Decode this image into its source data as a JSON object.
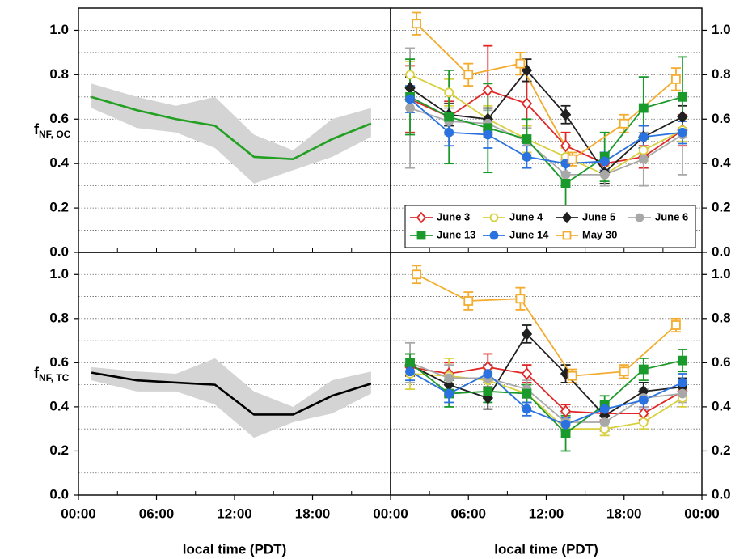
{
  "chart_data": [
    {
      "type": "line",
      "ylabel": "f",
      "ylabel_sub": "NF, OC",
      "xlim": [
        0,
        24
      ],
      "ylim": [
        0,
        1.1
      ],
      "yticks": [
        {
          "value": 0,
          "label": "0.0"
        },
        0.2,
        0.4,
        0.6,
        0.8,
        {
          "value": 1,
          "label": "1.0"
        }
      ],
      "y_minor_ticks": [
        0.1,
        0.3,
        0.5,
        0.7,
        0.9
      ],
      "x_minor_ticks": [
        0,
        3,
        6,
        9,
        12,
        15,
        18,
        21
      ],
      "grid": true,
      "series": [
        {
          "color": "#22a022",
          "band_color": "#d4d4d4",
          "x": [
            1,
            4.5,
            7.5,
            10.5,
            13.5,
            16.5,
            19.5,
            22.5
          ],
          "values": [
            0.7,
            0.64,
            0.6,
            0.57,
            0.43,
            0.42,
            0.51,
            0.58
          ],
          "band_high": [
            0.76,
            0.7,
            0.66,
            0.7,
            0.53,
            0.46,
            0.6,
            0.65
          ],
          "band_low": [
            0.65,
            0.56,
            0.54,
            0.47,
            0.31,
            0.37,
            0.43,
            0.52
          ]
        }
      ]
    },
    {
      "type": "line",
      "side": "right",
      "xlim": [
        0,
        24
      ],
      "ylim": [
        0,
        1.1
      ],
      "yticks": [
        {
          "value": 0,
          "label": "0.0"
        },
        0.2,
        0.4,
        0.6,
        0.8,
        {
          "value": 1,
          "label": "1.0"
        }
      ],
      "y_minor_ticks": [
        0.1,
        0.3,
        0.5,
        0.7,
        0.9
      ],
      "x_minor_ticks": [
        0,
        3,
        6,
        9,
        12,
        15,
        18,
        21
      ],
      "grid": true,
      "legend": "lower",
      "series": [
        {
          "name": "June 3",
          "color": "#e02828",
          "marker": "diamond",
          "filled": false,
          "x": [
            1.5,
            4.5,
            7.5,
            10.5,
            13.5,
            16.5,
            19.5,
            22.5
          ],
          "values": [
            0.69,
            0.61,
            0.73,
            0.67,
            0.48,
            0.4,
            0.43,
            0.55
          ],
          "errors": [
            0.15,
            0.07,
            0.2,
            0.1,
            0.06,
            0.05,
            0.05,
            0.07
          ]
        },
        {
          "name": "June 4",
          "color": "#d8d040",
          "marker": "circle",
          "filled": false,
          "x": [
            1.5,
            4.5,
            7.5,
            10.5,
            13.5,
            16.5,
            19.5,
            22.5
          ],
          "values": [
            0.8,
            0.72,
            0.6,
            0.51,
            0.43,
            0.35,
            0.46,
            0.55
          ],
          "errors": [
            0.06,
            0.06,
            0.06,
            0.06,
            0.04,
            0.04,
            0.05,
            0.05
          ]
        },
        {
          "name": "June 5",
          "color": "#202020",
          "marker": "diamond",
          "filled": true,
          "x": [
            1.5,
            4.5,
            7.5,
            10.5,
            13.5,
            16.5,
            19.5,
            22.5
          ],
          "values": [
            0.74,
            0.62,
            0.6,
            0.82,
            0.62,
            0.36,
            0.52,
            0.61
          ],
          "errors": [
            0.05,
            0.05,
            0.05,
            0.05,
            0.04,
            0.05,
            0.05,
            0.05
          ]
        },
        {
          "name": "June 6",
          "color": "#a8a8a8",
          "marker": "circle",
          "filled": true,
          "x": [
            1.5,
            4.5,
            7.5,
            10.5,
            13.5,
            16.5,
            19.5,
            22.5
          ],
          "values": [
            0.65,
            0.59,
            0.58,
            0.5,
            0.35,
            0.35,
            0.42,
            0.53
          ],
          "errors": [
            0.27,
            0.06,
            0.06,
            0.06,
            0.05,
            0.05,
            0.12,
            0.18
          ]
        },
        {
          "name": "June 13",
          "color": "#1a9a2a",
          "marker": "square",
          "filled": true,
          "x": [
            1.5,
            4.5,
            7.5,
            10.5,
            13.5,
            16.5,
            19.5,
            22.5
          ],
          "values": [
            0.7,
            0.61,
            0.56,
            0.51,
            0.31,
            0.43,
            0.65,
            0.7
          ],
          "errors": [
            0.17,
            0.21,
            0.2,
            0.09,
            0.1,
            0.11,
            0.14,
            0.18
          ]
        },
        {
          "name": "June 14",
          "color": "#2a72e0",
          "marker": "circle",
          "filled": true,
          "x": [
            1.5,
            4.5,
            7.5,
            10.5,
            13.5,
            16.5,
            19.5,
            22.5
          ],
          "values": [
            0.69,
            0.54,
            0.53,
            0.43,
            0.4,
            0.41,
            0.52,
            0.54
          ],
          "errors": [
            0.06,
            0.06,
            0.06,
            0.05,
            0.04,
            0.04,
            0.05,
            0.05
          ]
        },
        {
          "name": "May 30",
          "color": "#f3ac2e",
          "marker": "square",
          "filled": false,
          "x": [
            2,
            6,
            10,
            14,
            18,
            22
          ],
          "values": [
            1.03,
            0.8,
            0.85,
            0.42,
            0.58,
            0.78
          ],
          "errors": [
            0.05,
            0.05,
            0.05,
            0.03,
            0.04,
            0.05
          ]
        }
      ]
    },
    {
      "type": "line",
      "ylabel": "f",
      "ylabel_sub": "NF, TC",
      "xlabel": "local time (PDT)",
      "xlim": [
        0,
        24
      ],
      "ylim": [
        0,
        1.1
      ],
      "yticks": [
        {
          "value": 0,
          "label": "0.0"
        },
        0.2,
        0.4,
        0.6,
        0.8,
        {
          "value": 1,
          "label": "1.0"
        }
      ],
      "y_minor_ticks": [
        0.1,
        0.3,
        0.5,
        0.7,
        0.9
      ],
      "xticks": [
        {
          "value": 0,
          "label": "00:00"
        },
        {
          "value": 6,
          "label": "06:00"
        },
        {
          "value": 12,
          "label": "12:00"
        },
        {
          "value": 18,
          "label": "18:00"
        }
      ],
      "x_minor_ticks": [
        3,
        9,
        15,
        21
      ],
      "grid": true,
      "series": [
        {
          "color": "#000000",
          "band_color": "#d4d4d4",
          "x": [
            1,
            4.5,
            7.5,
            10.5,
            13.5,
            16.5,
            19.5,
            22.5
          ],
          "values": [
            0.555,
            0.52,
            0.51,
            0.5,
            0.365,
            0.365,
            0.45,
            0.505
          ],
          "band_high": [
            0.58,
            0.56,
            0.55,
            0.62,
            0.47,
            0.4,
            0.52,
            0.56
          ],
          "band_low": [
            0.52,
            0.47,
            0.47,
            0.41,
            0.26,
            0.33,
            0.37,
            0.46
          ]
        }
      ]
    },
    {
      "type": "line",
      "side": "right",
      "xlabel": "local time (PDT)",
      "xlim": [
        0,
        24
      ],
      "ylim": [
        0,
        1.1
      ],
      "yticks": [
        {
          "value": 0,
          "label": "0.0"
        },
        0.2,
        0.4,
        0.6,
        0.8,
        {
          "value": 1,
          "label": "1.0"
        }
      ],
      "y_minor_ticks": [
        0.1,
        0.3,
        0.5,
        0.7,
        0.9
      ],
      "xticks": [
        {
          "value": 0,
          "label": "00:00"
        },
        {
          "value": 6,
          "label": "06:00"
        },
        {
          "value": 12,
          "label": "12:00"
        },
        {
          "value": 18,
          "label": "18:00"
        },
        {
          "value": 24,
          "label": "00:00"
        }
      ],
      "x_minor_ticks": [
        3,
        9,
        15,
        21
      ],
      "grid": true,
      "series": [
        {
          "color": "#e02828",
          "marker": "diamond",
          "filled": false,
          "x": [
            1.5,
            4.5,
            7.5,
            10.5,
            13.5,
            16.5,
            19.5,
            22.5
          ],
          "values": [
            0.58,
            0.55,
            0.58,
            0.55,
            0.38,
            0.37,
            0.37,
            0.47
          ],
          "errors": [
            0.04,
            0.05,
            0.06,
            0.04,
            0.03,
            0.03,
            0.03,
            0.04
          ]
        },
        {
          "color": "#d8d040",
          "marker": "circle",
          "filled": false,
          "x": [
            1.5,
            4.5,
            7.5,
            10.5,
            13.5,
            16.5,
            19.5,
            22.5
          ],
          "values": [
            0.55,
            0.54,
            0.52,
            0.46,
            0.3,
            0.3,
            0.33,
            0.44
          ],
          "errors": [
            0.07,
            0.08,
            0.05,
            0.04,
            0.04,
            0.03,
            0.03,
            0.04
          ]
        },
        {
          "color": "#202020",
          "marker": "diamond",
          "filled": true,
          "x": [
            1.5,
            4.5,
            7.5,
            10.5,
            13.5,
            16.5,
            19.5,
            22.5
          ],
          "values": [
            0.59,
            0.5,
            0.44,
            0.73,
            0.55,
            0.36,
            0.47,
            0.49
          ],
          "errors": [
            0.05,
            0.05,
            0.05,
            0.04,
            0.04,
            0.03,
            0.04,
            0.04
          ]
        },
        {
          "color": "#a8a8a8",
          "marker": "circle",
          "filled": true,
          "x": [
            1.5,
            4.5,
            7.5,
            10.5,
            13.5,
            16.5,
            19.5,
            22.5
          ],
          "values": [
            0.6,
            0.53,
            0.53,
            0.48,
            0.33,
            0.33,
            0.44,
            0.46
          ],
          "errors": [
            0.09,
            0.06,
            0.05,
            0.04,
            0.04,
            0.04,
            0.04,
            0.04
          ]
        },
        {
          "color": "#1a9a2a",
          "marker": "square",
          "filled": true,
          "x": [
            1.5,
            4.5,
            7.5,
            10.5,
            13.5,
            16.5,
            19.5,
            22.5
          ],
          "values": [
            0.6,
            0.46,
            0.47,
            0.46,
            0.28,
            0.41,
            0.57,
            0.61
          ],
          "errors": [
            0.04,
            0.06,
            0.05,
            0.04,
            0.08,
            0.04,
            0.05,
            0.05
          ]
        },
        {
          "color": "#2a72e0",
          "marker": "circle",
          "filled": true,
          "x": [
            1.5,
            4.5,
            7.5,
            10.5,
            13.5,
            16.5,
            19.5,
            22.5
          ],
          "values": [
            0.56,
            0.46,
            0.55,
            0.39,
            0.32,
            0.39,
            0.43,
            0.51
          ],
          "errors": [
            0.04,
            0.04,
            0.04,
            0.03,
            0.03,
            0.03,
            0.04,
            0.04
          ]
        },
        {
          "color": "#f3ac2e",
          "marker": "square",
          "filled": false,
          "x": [
            2,
            6,
            10,
            14,
            18,
            22
          ],
          "values": [
            1.0,
            0.88,
            0.89,
            0.54,
            0.56,
            0.77
          ],
          "errors": [
            0.04,
            0.04,
            0.05,
            0.03,
            0.03,
            0.03
          ]
        }
      ]
    }
  ]
}
